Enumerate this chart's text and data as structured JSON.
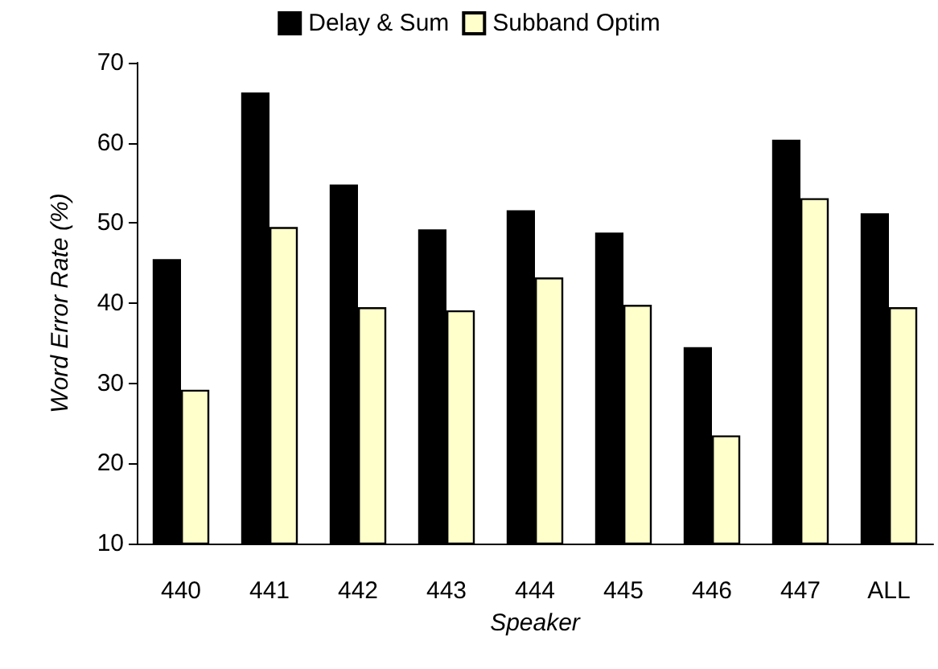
{
  "chart_data": {
    "type": "bar",
    "xlabel": "Speaker",
    "ylabel": "Word Error Rate (%)",
    "categories": [
      "440",
      "441",
      "442",
      "443",
      "444",
      "445",
      "446",
      "447",
      "ALL"
    ],
    "series": [
      {
        "name": "Delay & Sum",
        "color": "#000000",
        "values": [
          45.5,
          66.3,
          54.8,
          49.2,
          51.6,
          48.8,
          34.5,
          60.4,
          51.2
        ]
      },
      {
        "name": "Subband Optim",
        "color": "#ffffcc",
        "values": [
          29.2,
          49.5,
          39.5,
          39.1,
          43.2,
          39.8,
          23.5,
          53.1,
          39.5
        ]
      }
    ],
    "ylim": [
      10,
      70
    ],
    "yticks": [
      10,
      20,
      30,
      40,
      50,
      60,
      70
    ],
    "grid": false,
    "legend": "top"
  }
}
